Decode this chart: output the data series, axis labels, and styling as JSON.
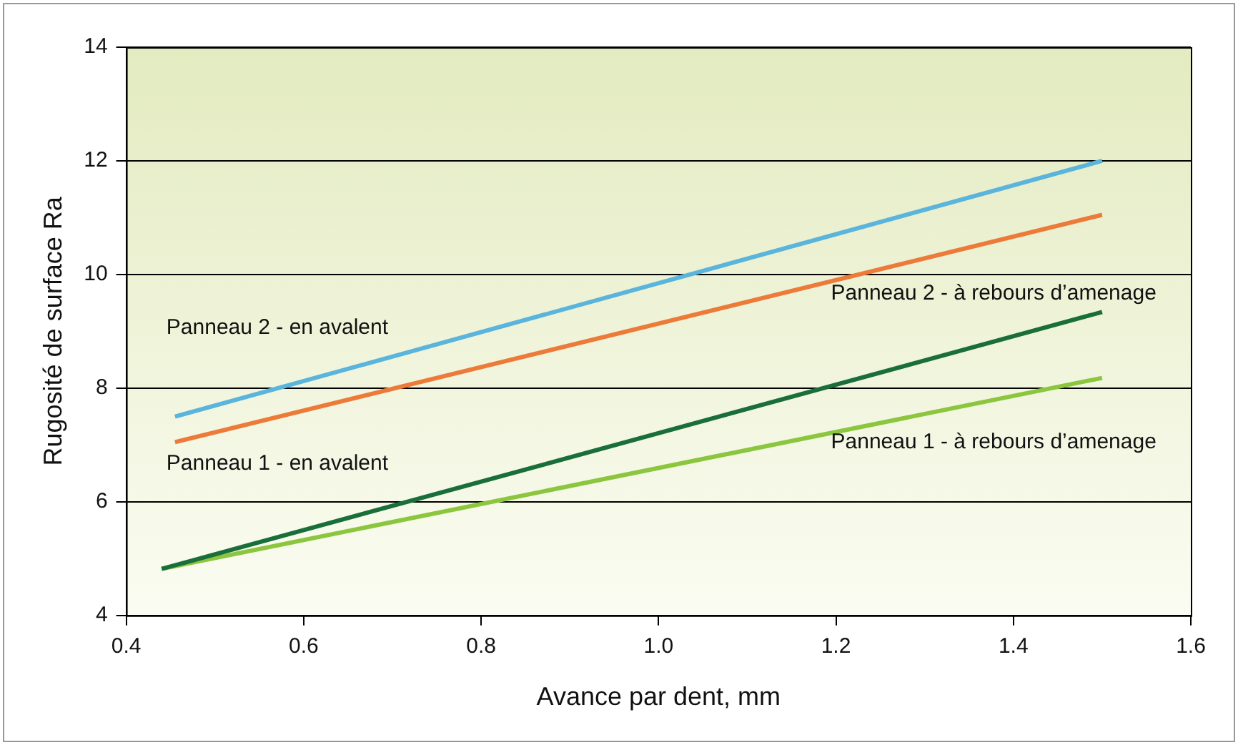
{
  "chart_data": {
    "type": "line",
    "xlabel": "Avance par dent, mm",
    "ylabel": "Rugosité de surface Ra",
    "xlim": [
      0.4,
      1.6
    ],
    "xticks": [
      {
        "value": 0.4,
        "label": "0.4"
      },
      {
        "value": 0.6,
        "label": "0.6"
      },
      {
        "value": 0.8,
        "label": "0.8"
      },
      {
        "value": 1.0,
        "label": "1.0"
      },
      {
        "value": 1.2,
        "label": "1.2"
      },
      {
        "value": 1.4,
        "label": "1.4"
      },
      {
        "value": 1.6,
        "label": "1.6"
      }
    ],
    "ylim": [
      4,
      14
    ],
    "yticks": [
      4,
      6,
      8,
      10,
      12,
      14
    ],
    "grid": "y",
    "legend": false,
    "marker": "none",
    "line_style": "solid",
    "series": [
      {
        "name": "Panneau 2 - en avalent",
        "color": "#5ab4dc",
        "x": [
          0.455,
          1.5
        ],
        "values": [
          7.5,
          12.0
        ]
      },
      {
        "name": "Panneau 1 - en avalent",
        "color": "#ec7b3a",
        "x": [
          0.455,
          1.5
        ],
        "values": [
          7.05,
          11.05
        ]
      },
      {
        "name": "Panneau 2 - à rebours d’amenage",
        "color": "#1a6e3a",
        "x": [
          0.44,
          1.5
        ],
        "values": [
          4.82,
          9.34
        ]
      },
      {
        "name": "Panneau 1 - à rebours d’amenage",
        "color": "#8cc63f",
        "x": [
          0.44,
          1.5
        ],
        "values": [
          4.82,
          8.18
        ]
      }
    ]
  }
}
